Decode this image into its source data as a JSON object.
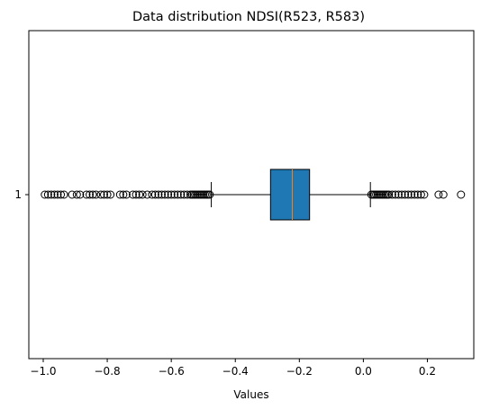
{
  "chart_data": {
    "type": "boxplot",
    "orientation": "horizontal",
    "title": "Data distribution NDSI(R523, R583)",
    "xlabel": "Values",
    "ylabel": "",
    "xlim": [
      -1.045,
      0.345
    ],
    "xticks": [
      -1.0,
      -0.8,
      -0.6,
      -0.4,
      -0.2,
      0.0,
      0.2
    ],
    "xtick_labels": [
      "−1.0",
      "−0.8",
      "−0.6",
      "−0.4",
      "−0.2",
      "0.0",
      "0.2"
    ],
    "yticks": [
      1
    ],
    "ytick_labels": [
      "1"
    ],
    "grid": false,
    "colors": {
      "box_fill": "#1f77b4",
      "median": "#ff7f0e",
      "lines": "#000000"
    },
    "boxes": [
      {
        "position": 1,
        "whisker_low": -0.475,
        "q1": -0.29,
        "median": -0.222,
        "q3": -0.168,
        "whisker_high": 0.022,
        "outliers": [
          -0.995,
          -0.985,
          -0.975,
          -0.965,
          -0.955,
          -0.945,
          -0.935,
          -0.91,
          -0.895,
          -0.885,
          -0.865,
          -0.855,
          -0.845,
          -0.835,
          -0.82,
          -0.81,
          -0.8,
          -0.79,
          -0.76,
          -0.75,
          -0.74,
          -0.72,
          -0.71,
          -0.7,
          -0.69,
          -0.675,
          -0.66,
          -0.65,
          -0.64,
          -0.63,
          -0.62,
          -0.61,
          -0.6,
          -0.59,
          -0.58,
          -0.57,
          -0.56,
          -0.55,
          -0.54,
          -0.535,
          -0.53,
          -0.525,
          -0.52,
          -0.515,
          -0.51,
          -0.505,
          -0.5,
          -0.495,
          -0.49,
          -0.485,
          -0.48,
          0.025,
          0.03,
          0.035,
          0.04,
          0.045,
          0.05,
          0.055,
          0.06,
          0.065,
          0.07,
          0.075,
          0.08,
          0.09,
          0.1,
          0.11,
          0.12,
          0.13,
          0.14,
          0.15,
          0.16,
          0.17,
          0.18,
          0.19,
          0.235,
          0.25,
          0.305
        ]
      }
    ]
  }
}
